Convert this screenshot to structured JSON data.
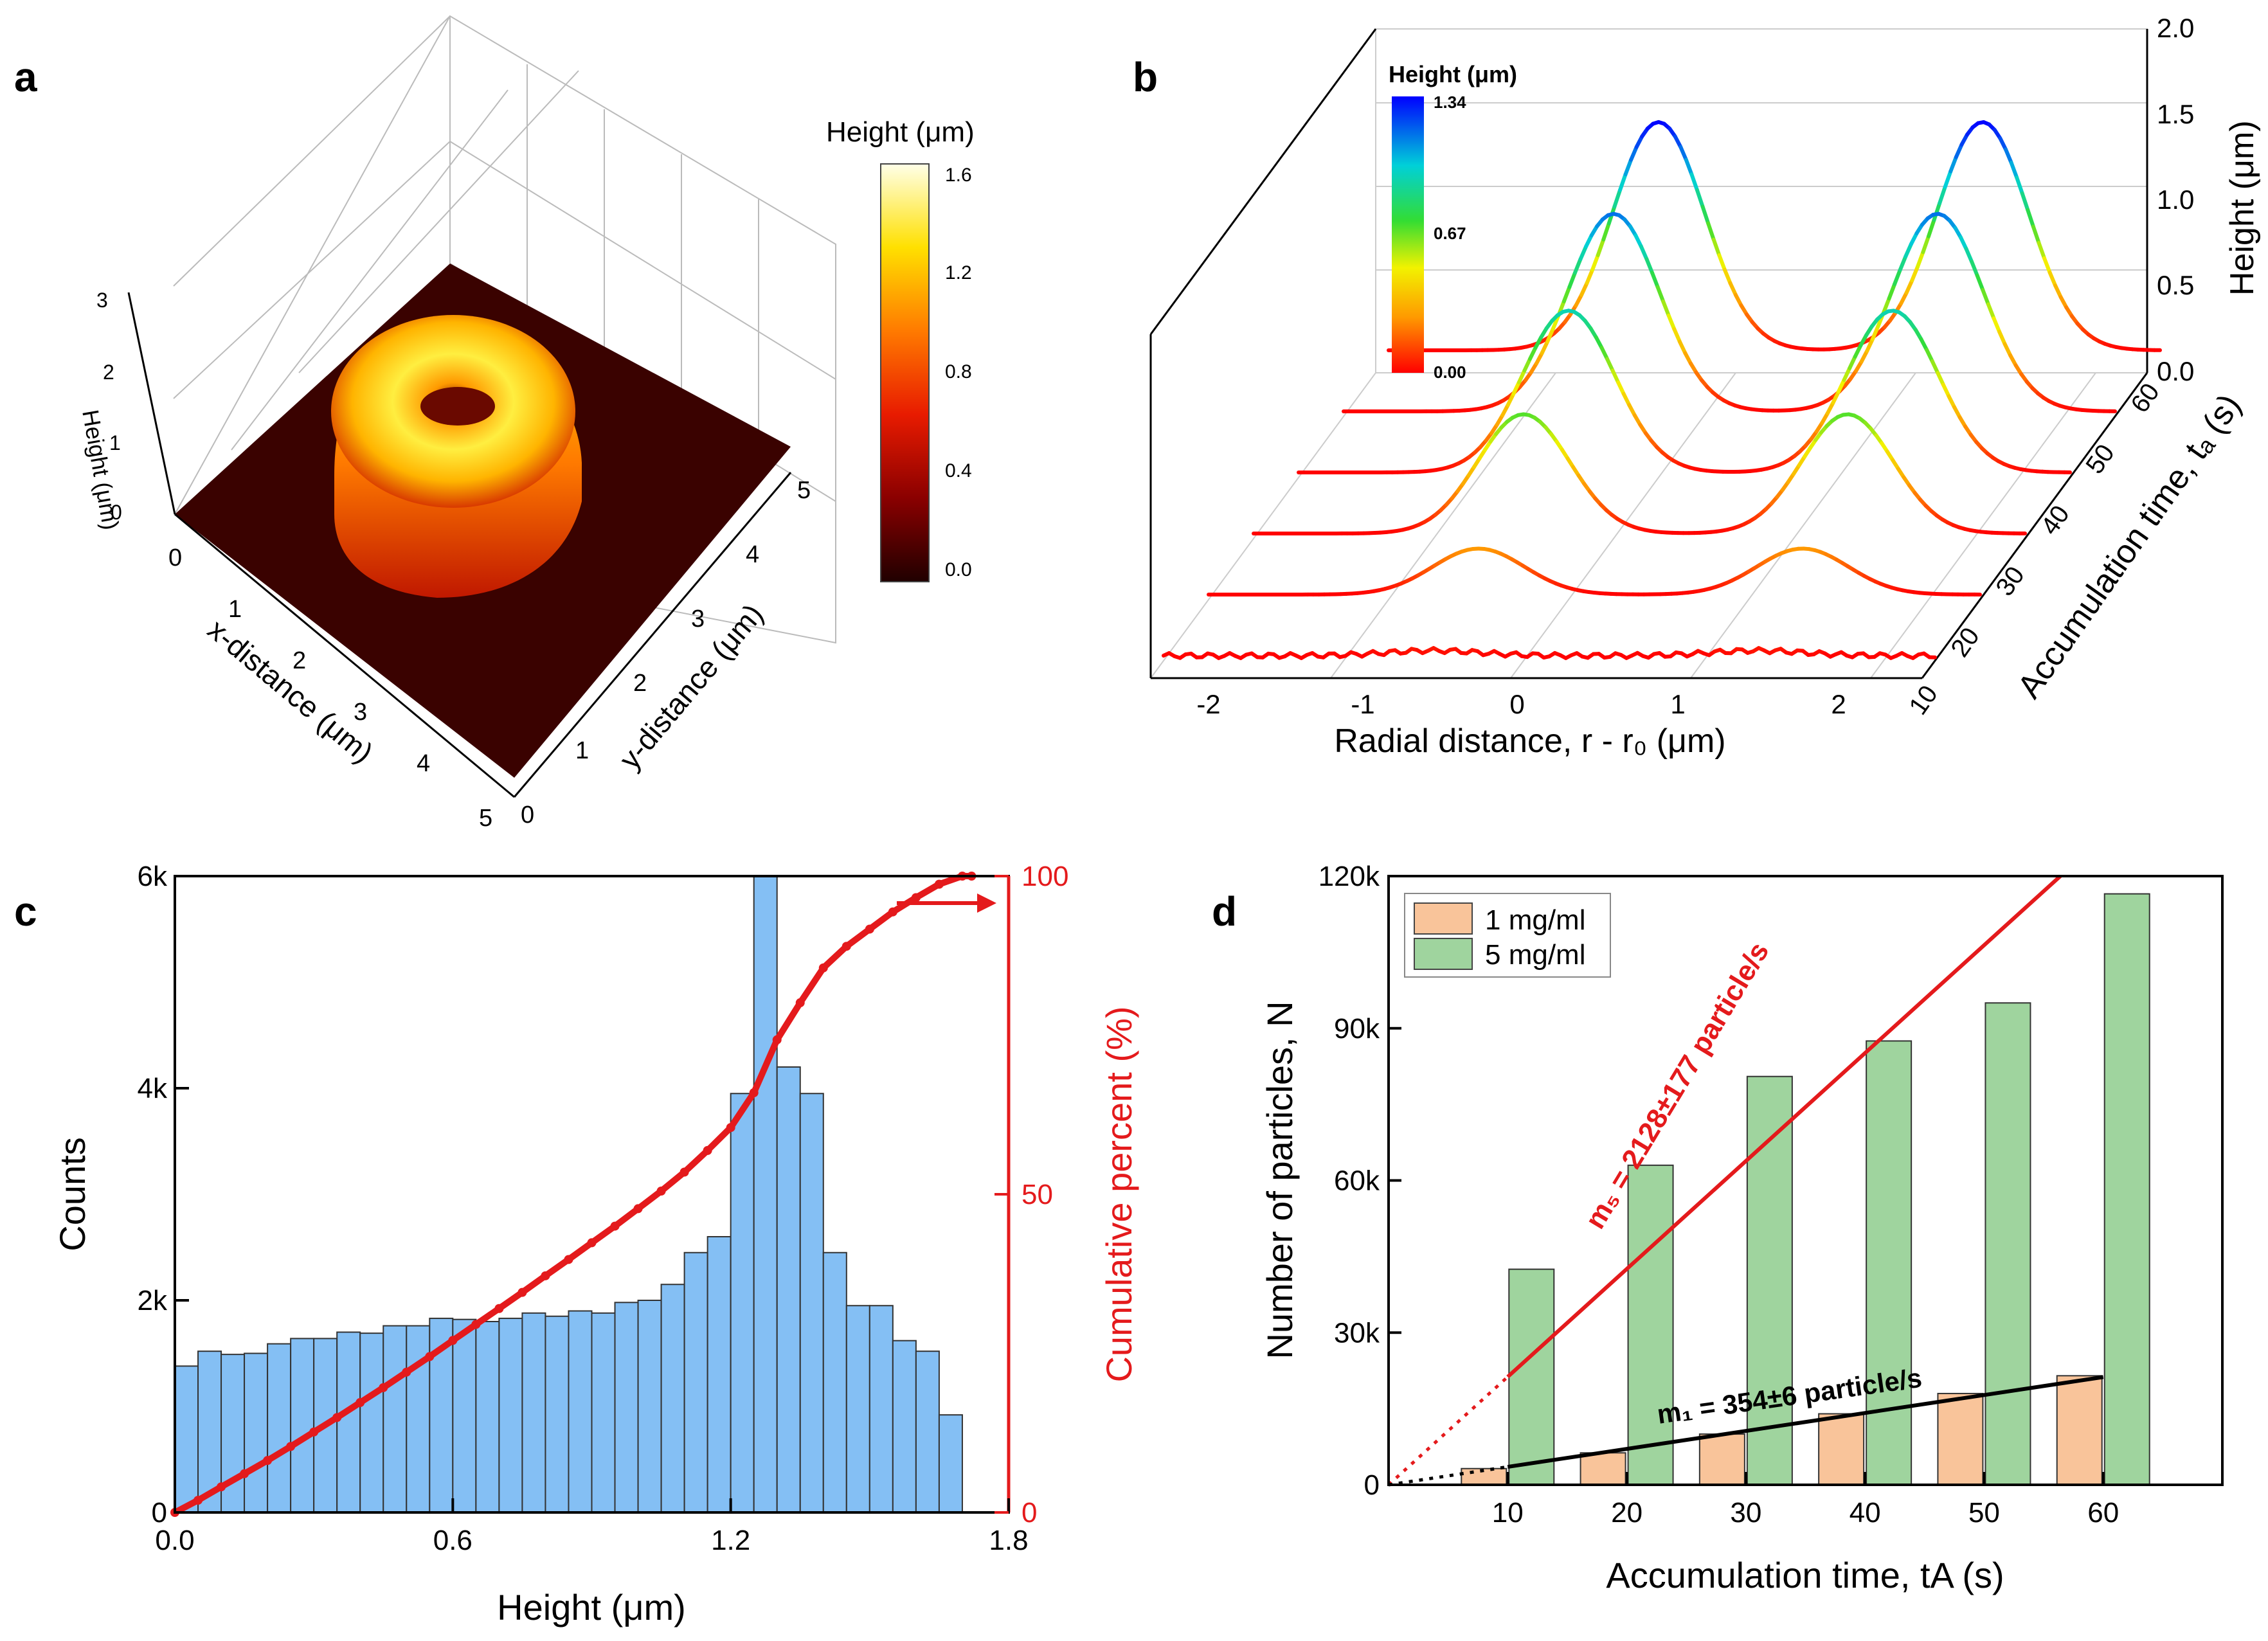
{
  "panels": {
    "a": {
      "label": "a",
      "colorbar_title": "Height (μm)",
      "colorbar_ticks": [
        "1.6",
        "1.2",
        "0.8",
        "0.4",
        "0.0"
      ],
      "z_title": "Height (μm)",
      "z_ticks": [
        "0",
        "1",
        "2",
        "3"
      ],
      "x_title": "x-distance (μm)",
      "x_ticks": [
        "0",
        "1",
        "2",
        "3",
        "4",
        "5"
      ],
      "y_title": "y-distance (μm)",
      "y_ticks": [
        "0",
        "1",
        "2",
        "3",
        "4",
        "5"
      ]
    },
    "b": {
      "label": "b",
      "colorbar_title": "Height (μm)",
      "colorbar_ticks": [
        "1.34",
        "0.67",
        "0.00"
      ],
      "x_title": "Radial distance, r - r₀ (μm)",
      "x_ticks": [
        "-2",
        "-1",
        "0",
        "1",
        "2"
      ],
      "z_title": "Height (μm)",
      "z_ticks": [
        "2.0",
        "1.5",
        "1.0",
        "0.5",
        "0.0"
      ],
      "t_title": "Accumulation time, tₐ (s)",
      "t_ticks": [
        "60",
        "50",
        "40",
        "30",
        "20",
        "10"
      ]
    },
    "c": {
      "label": "c"
    },
    "d": {
      "label": "d"
    }
  },
  "chart_data": [
    {
      "id": "a",
      "type": "heatmap",
      "title": "",
      "description_units": "3D surface: ring-shaped deposit, height up to ~1.6 μm",
      "x_range": [
        0,
        5
      ],
      "y_range": [
        0,
        5
      ],
      "z_range": [
        0,
        3
      ],
      "colorbar_range": [
        0.0,
        1.6
      ]
    },
    {
      "id": "b",
      "type": "line",
      "xlabel": "Radial distance, r - r0 (μm)",
      "ylabel": "Height (μm)",
      "xlim": [
        -2.5,
        2.5
      ],
      "ylim": [
        0,
        2.0
      ],
      "series": [
        {
          "name": "10",
          "peak_height": 0.03
        },
        {
          "name": "20",
          "peak_height": 0.27
        },
        {
          "name": "30",
          "peak_height": 0.7
        },
        {
          "name": "40",
          "peak_height": 0.95
        },
        {
          "name": "50",
          "peak_height": 1.16
        },
        {
          "name": "60",
          "peak_height": 1.34
        }
      ]
    },
    {
      "id": "c",
      "type": "bar",
      "xlabel": "Height (μm)",
      "ylabel": "Counts",
      "y2label": "Cumulative percent (%)",
      "xlim": [
        0.0,
        1.8
      ],
      "ylim": [
        0,
        6000
      ],
      "y2lim": [
        0,
        100
      ],
      "x_ticks": [
        "0.0",
        "0.6",
        "1.2",
        "1.8"
      ],
      "y_ticks": [
        "0",
        "2k",
        "4k",
        "6k"
      ],
      "y2_ticks": [
        "0",
        "50",
        "100"
      ],
      "bin_width": 0.05,
      "values": [
        1380,
        1520,
        1490,
        1500,
        1590,
        1640,
        1640,
        1700,
        1690,
        1760,
        1760,
        1830,
        1820,
        1800,
        1830,
        1880,
        1850,
        1900,
        1880,
        1980,
        2000,
        2150,
        2450,
        2600,
        3950,
        6000,
        4200,
        3950,
        2450,
        1950,
        1950,
        1620,
        1520,
        920
      ]
    },
    {
      "id": "d",
      "type": "bar",
      "xlabel": "Accumulation time, tA (s)",
      "ylabel": "Number of particles, N",
      "categories": [
        "10",
        "20",
        "30",
        "40",
        "50",
        "60"
      ],
      "x_values": [
        10,
        20,
        30,
        40,
        50,
        60
      ],
      "ylim": [
        0,
        120000
      ],
      "y_ticks": [
        "0",
        "30k",
        "60k",
        "90k",
        "120k"
      ],
      "series": [
        {
          "name": "1 mg/ml",
          "color": "#f9c49a",
          "values": [
            3200,
            6300,
            10000,
            14000,
            18000,
            21500
          ]
        },
        {
          "name": "5 mg/ml",
          "color": "#9fd49e",
          "values": [
            42500,
            63000,
            80500,
            87500,
            95000,
            116500
          ]
        }
      ],
      "fits": [
        {
          "label": "m₅ = 2128±177 particle/s",
          "color": "#e41a1c",
          "slope": 2128
        },
        {
          "label": "m₁ = 354±6 particle/s",
          "color": "#000000",
          "slope": 354
        }
      ]
    }
  ],
  "colors": {
    "hist_bar": "#84bff4",
    "cumulative": "#e41a1c",
    "text": "#000000"
  }
}
